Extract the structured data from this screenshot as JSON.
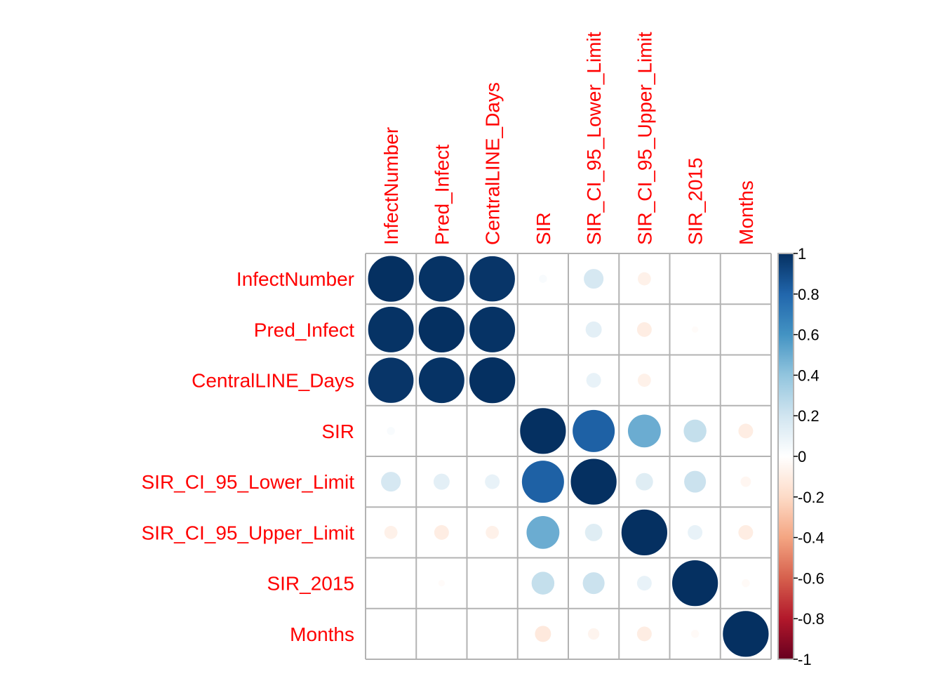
{
  "chart_data": {
    "type": "heatmap",
    "variables": [
      "InfectNumber",
      "Pred_Infect",
      "CentralLINE_Days",
      "SIR",
      "SIR_CI_95_Lower_Limit",
      "SIR_CI_95_Upper_Limit",
      "SIR_2015",
      "Months"
    ],
    "matrix": [
      [
        1.0,
        0.99,
        0.98,
        0.03,
        0.18,
        -0.08,
        0.0,
        0.0
      ],
      [
        0.99,
        1.0,
        0.99,
        0.0,
        0.12,
        -0.1,
        -0.02,
        0.0
      ],
      [
        0.98,
        0.99,
        1.0,
        0.0,
        0.1,
        -0.08,
        0.0,
        0.0
      ],
      [
        0.03,
        0.0,
        0.0,
        1.0,
        0.82,
        0.5,
        0.24,
        -0.1
      ],
      [
        0.18,
        0.12,
        0.1,
        0.82,
        1.0,
        0.14,
        0.22,
        -0.05
      ],
      [
        -0.08,
        -0.1,
        -0.08,
        0.5,
        0.14,
        1.0,
        0.1,
        -0.1
      ],
      [
        0.0,
        -0.02,
        0.0,
        0.24,
        0.22,
        0.1,
        1.0,
        -0.03
      ],
      [
        0.0,
        0.0,
        0.0,
        -0.12,
        -0.06,
        -0.1,
        -0.03,
        1.0
      ]
    ],
    "colorbar": {
      "ticks": [
        "1",
        "0.8",
        "0.6",
        "0.4",
        "0.2",
        "0",
        "-0.2",
        "-0.4",
        "-0.6",
        "-0.8",
        "-1"
      ],
      "range": [
        -1,
        1
      ]
    },
    "label_color": "#ff0000",
    "positive_color": "#053061",
    "negative_color": "#67001f",
    "grid": true
  }
}
